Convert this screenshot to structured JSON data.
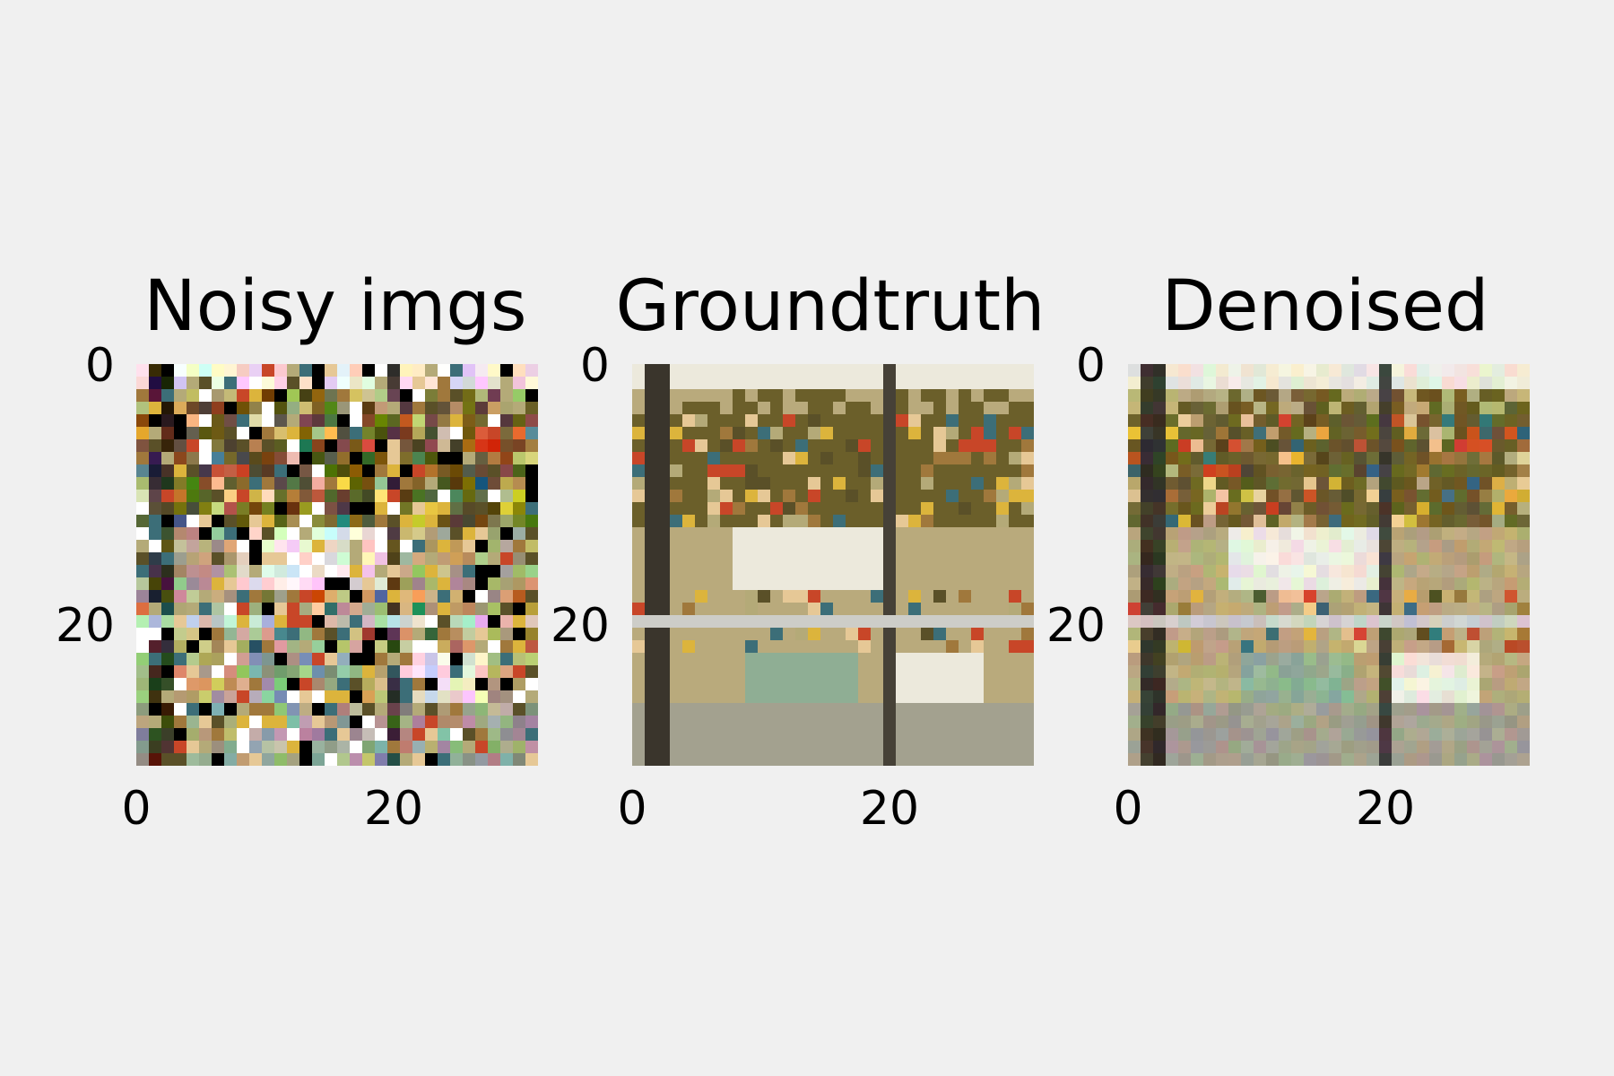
{
  "figure": {
    "panels": [
      {
        "title": "Noisy imgs",
        "image_kind": "noisy",
        "yticks": [
          "0",
          "20"
        ],
        "xticks": [
          "0",
          "20"
        ]
      },
      {
        "title": "Groundtruth",
        "image_kind": "clean",
        "yticks": [
          "0",
          "20"
        ],
        "xticks": [
          "0",
          "20"
        ]
      },
      {
        "title": "Denoised",
        "image_kind": "denoised",
        "yticks": [
          "0",
          "20"
        ],
        "xticks": [
          "0",
          "20"
        ]
      }
    ],
    "image_size": 32,
    "colors": {
      "background": "#f0f0f0",
      "olive": "#6b5f2a",
      "khaki": "#b9aa7c",
      "cream": "#ece9dc",
      "gray_floor": "#a3a18f",
      "teal_glass": "#8fae94",
      "dark_post": "#3a352c"
    }
  }
}
